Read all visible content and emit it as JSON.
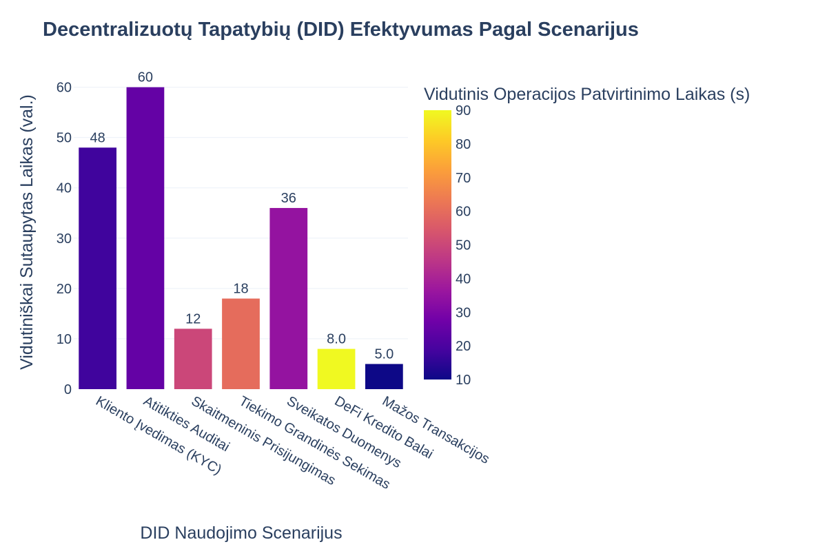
{
  "chart_data": {
    "type": "bar",
    "title": "Decentralizuotų Tapatybių (DID) Efektyvumas Pagal Scenarijus",
    "xlabel": "DID Naudojimo Scenarijus",
    "ylabel": "Vidutiniškai Sutaupytas Laikas (val.)",
    "categories": [
      "Kliento Įvedimas (KYC)",
      "Atitikties Auditai",
      "Skaitmeninis Prisijungimas",
      "Tiekimo Grandinės Sekimas",
      "Sveikatos Duomenys",
      "DeFi Kredito Balai",
      "Mažos Transakcijos"
    ],
    "values": [
      48,
      60,
      12,
      18,
      36,
      8,
      5
    ],
    "value_labels": [
      "48",
      "60",
      "12",
      "18",
      "36",
      "8.0",
      "5.0"
    ],
    "color_values": [
      18,
      25,
      50,
      60,
      35,
      90,
      10
    ],
    "ylim": [
      0,
      62
    ],
    "yticks": [
      0,
      10,
      20,
      30,
      40,
      50,
      60
    ],
    "colorbar": {
      "title": "Vidutinis Operacijos Patvirtinimo Laikas (s)",
      "range": [
        10,
        90
      ],
      "ticks": [
        10,
        20,
        30,
        40,
        50,
        60,
        70,
        80,
        90
      ],
      "colorscale": [
        "#0d0887",
        "#46039f",
        "#7201a8",
        "#9c179e",
        "#bd3786",
        "#d8576b",
        "#ed7953",
        "#fb9f3a",
        "#fdca26",
        "#f0f921"
      ]
    },
    "grid": true
  }
}
